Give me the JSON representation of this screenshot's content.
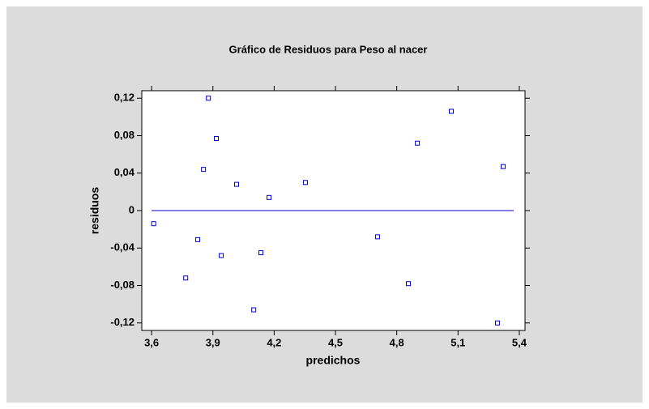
{
  "chart_data": {
    "type": "scatter",
    "title": "Gráfico de Residuos para Peso al nacer",
    "x_label": "predichos",
    "y_label": "residuos",
    "x": [
      3.61,
      3.767,
      3.826,
      3.854,
      3.878,
      3.917,
      3.941,
      4.016,
      4.1,
      4.135,
      4.175,
      4.353,
      4.706,
      4.857,
      4.901,
      5.067,
      5.293,
      5.321
    ],
    "values": [
      -0.014,
      -0.072,
      -0.031,
      0.044,
      0.12,
      0.077,
      -0.048,
      0.028,
      -0.106,
      -0.045,
      0.014,
      0.03,
      -0.028,
      -0.078,
      0.072,
      0.106,
      -0.12,
      0.047
    ],
    "color": "#0000cc",
    "reference_line": 0,
    "xlim": [
      3.552,
      5.428
    ],
    "ylim": [
      -0.128,
      0.128
    ],
    "xticks": [
      {
        "value": 3.6,
        "label": "3,6"
      },
      {
        "value": 3.9,
        "label": "3,9"
      },
      {
        "value": 4.2,
        "label": "4,2"
      },
      {
        "value": 4.5,
        "label": "4,5"
      },
      {
        "value": 4.8,
        "label": "4,8"
      },
      {
        "value": 5.1,
        "label": "5,1"
      },
      {
        "value": 5.4,
        "label": "5,4"
      }
    ],
    "yticks": [
      {
        "value": -0.12,
        "label": "-0,12"
      },
      {
        "value": -0.08,
        "label": "-0,08"
      },
      {
        "value": -0.04,
        "label": "-0,04"
      },
      {
        "value": 0,
        "label": "0"
      },
      {
        "value": 0.04,
        "label": "0,04"
      },
      {
        "value": 0.08,
        "label": "0,08"
      },
      {
        "value": 0.12,
        "label": "0,12"
      }
    ]
  }
}
